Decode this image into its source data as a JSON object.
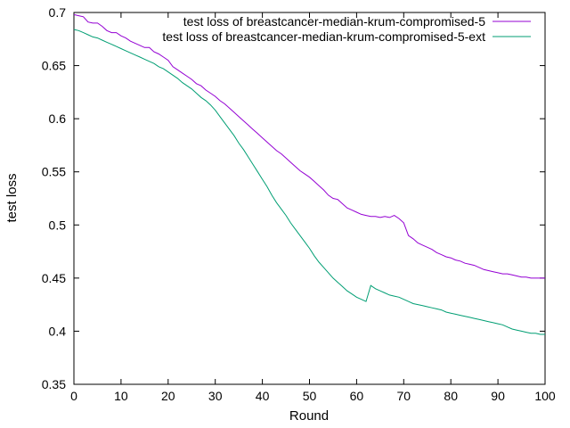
{
  "chart_data": {
    "type": "line",
    "title": "",
    "xlabel": "Round",
    "ylabel": "test loss",
    "xlim": [
      0,
      100
    ],
    "ylim": [
      0.35,
      0.7
    ],
    "xticks": [
      0,
      10,
      20,
      30,
      40,
      50,
      60,
      70,
      80,
      90,
      100
    ],
    "yticks": [
      0.35,
      0.4,
      0.45,
      0.5,
      0.55,
      0.6,
      0.65,
      0.7
    ],
    "ytick_labels": [
      "0.35",
      "0.4",
      "0.45",
      "0.5",
      "0.55",
      "0.6",
      "0.65",
      "0.7"
    ],
    "grid": false,
    "legend_position": "top-right",
    "series": [
      {
        "name": "test loss of breastcancer-median-krum-compromised-5",
        "color": "#9400d3",
        "x": [
          0,
          1,
          2,
          3,
          4,
          5,
          6,
          7,
          8,
          9,
          10,
          11,
          12,
          13,
          14,
          15,
          16,
          17,
          18,
          19,
          20,
          21,
          22,
          23,
          24,
          25,
          26,
          27,
          28,
          29,
          30,
          31,
          32,
          33,
          34,
          35,
          36,
          37,
          38,
          39,
          40,
          41,
          42,
          43,
          44,
          45,
          46,
          47,
          48,
          49,
          50,
          51,
          52,
          53,
          54,
          55,
          56,
          57,
          58,
          59,
          60,
          61,
          62,
          63,
          64,
          65,
          66,
          67,
          68,
          69,
          70,
          71,
          72,
          73,
          74,
          75,
          76,
          77,
          78,
          79,
          80,
          81,
          82,
          83,
          84,
          85,
          86,
          87,
          88,
          89,
          90,
          91,
          92,
          93,
          94,
          95,
          96,
          97,
          98,
          99,
          100
        ],
        "y": [
          0.698,
          0.697,
          0.696,
          0.691,
          0.69,
          0.69,
          0.687,
          0.683,
          0.681,
          0.681,
          0.678,
          0.676,
          0.673,
          0.671,
          0.669,
          0.667,
          0.667,
          0.663,
          0.661,
          0.658,
          0.655,
          0.649,
          0.646,
          0.643,
          0.64,
          0.637,
          0.633,
          0.631,
          0.627,
          0.624,
          0.621,
          0.617,
          0.614,
          0.61,
          0.606,
          0.602,
          0.598,
          0.594,
          0.59,
          0.586,
          0.582,
          0.578,
          0.574,
          0.57,
          0.567,
          0.563,
          0.559,
          0.555,
          0.551,
          0.548,
          0.545,
          0.541,
          0.537,
          0.533,
          0.528,
          0.525,
          0.524,
          0.52,
          0.516,
          0.514,
          0.512,
          0.51,
          0.509,
          0.508,
          0.508,
          0.507,
          0.508,
          0.507,
          0.509,
          0.506,
          0.502,
          0.49,
          0.487,
          0.483,
          0.481,
          0.479,
          0.477,
          0.474,
          0.472,
          0.47,
          0.469,
          0.467,
          0.466,
          0.464,
          0.463,
          0.462,
          0.46,
          0.458,
          0.457,
          0.456,
          0.455,
          0.454,
          0.454,
          0.453,
          0.452,
          0.451,
          0.451,
          0.45,
          0.45,
          0.45,
          0.45
        ]
      },
      {
        "name": "test loss of breastcancer-median-krum-compromised-5-ext",
        "color": "#009e73",
        "x": [
          0,
          1,
          2,
          3,
          4,
          5,
          6,
          7,
          8,
          9,
          10,
          11,
          12,
          13,
          14,
          15,
          16,
          17,
          18,
          19,
          20,
          21,
          22,
          23,
          24,
          25,
          26,
          27,
          28,
          29,
          30,
          31,
          32,
          33,
          34,
          35,
          36,
          37,
          38,
          39,
          40,
          41,
          42,
          43,
          44,
          45,
          46,
          47,
          48,
          49,
          50,
          51,
          52,
          53,
          54,
          55,
          56,
          57,
          58,
          59,
          60,
          61,
          62,
          63,
          64,
          65,
          66,
          67,
          68,
          69,
          70,
          71,
          72,
          73,
          74,
          75,
          76,
          77,
          78,
          79,
          80,
          81,
          82,
          83,
          84,
          85,
          86,
          87,
          88,
          89,
          90,
          91,
          92,
          93,
          94,
          95,
          96,
          97,
          98,
          99,
          100
        ],
        "y": [
          0.684,
          0.683,
          0.681,
          0.679,
          0.677,
          0.676,
          0.674,
          0.672,
          0.67,
          0.668,
          0.666,
          0.664,
          0.662,
          0.66,
          0.658,
          0.656,
          0.654,
          0.652,
          0.649,
          0.647,
          0.644,
          0.641,
          0.638,
          0.634,
          0.631,
          0.628,
          0.624,
          0.62,
          0.617,
          0.613,
          0.608,
          0.602,
          0.596,
          0.59,
          0.584,
          0.577,
          0.571,
          0.564,
          0.557,
          0.55,
          0.543,
          0.536,
          0.528,
          0.521,
          0.515,
          0.509,
          0.502,
          0.496,
          0.49,
          0.484,
          0.478,
          0.471,
          0.465,
          0.46,
          0.455,
          0.45,
          0.446,
          0.442,
          0.438,
          0.435,
          0.432,
          0.43,
          0.428,
          0.443,
          0.44,
          0.438,
          0.436,
          0.434,
          0.433,
          0.432,
          0.43,
          0.428,
          0.426,
          0.425,
          0.424,
          0.423,
          0.422,
          0.421,
          0.42,
          0.418,
          0.417,
          0.416,
          0.415,
          0.414,
          0.413,
          0.412,
          0.411,
          0.41,
          0.409,
          0.408,
          0.407,
          0.406,
          0.404,
          0.402,
          0.401,
          0.4,
          0.399,
          0.398,
          0.398,
          0.397,
          0.397
        ]
      }
    ]
  }
}
